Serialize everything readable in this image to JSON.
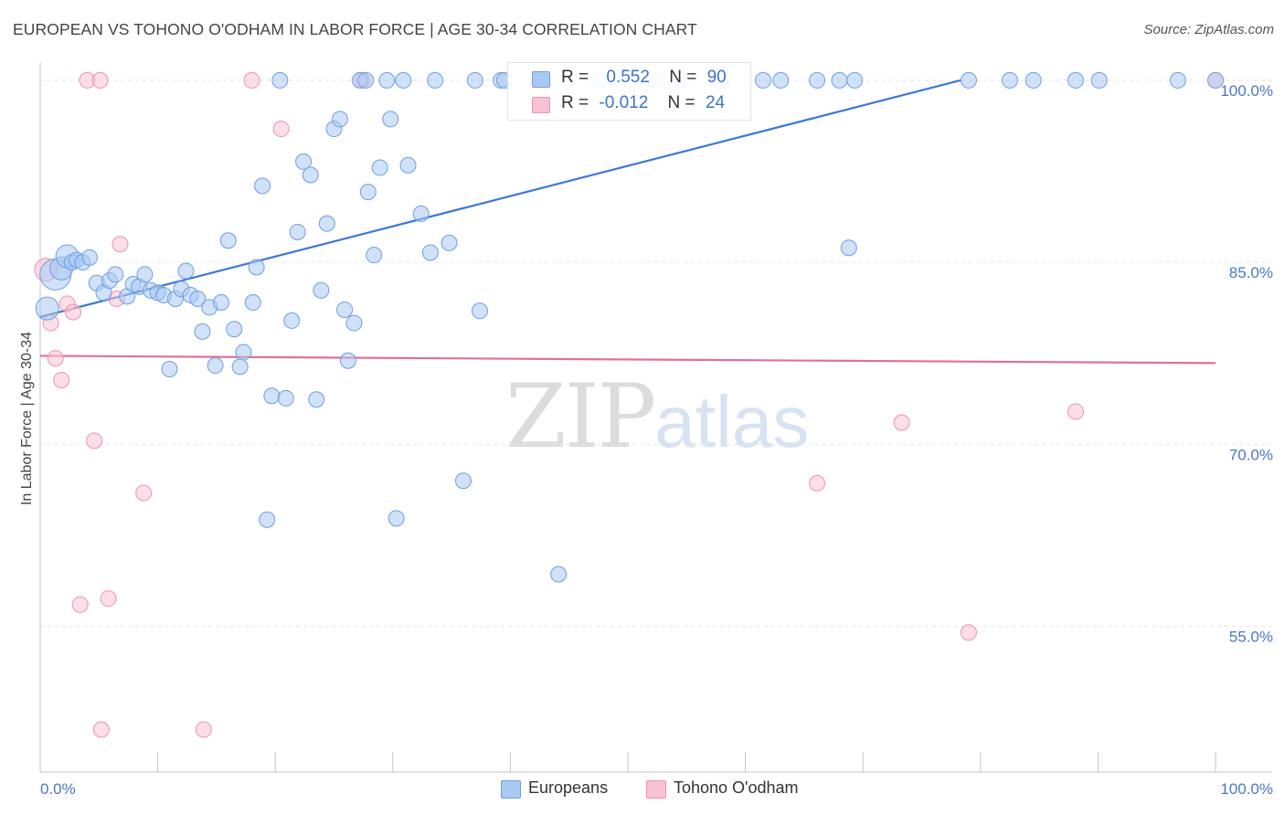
{
  "header": {
    "title": "EUROPEAN VS TOHONO O'ODHAM IN LABOR FORCE | AGE 30-34 CORRELATION CHART",
    "source": "Source: ZipAtlas.com"
  },
  "watermark": {
    "zip": "ZIP",
    "atlas": "atlas"
  },
  "legend": {
    "rows": [
      {
        "r_label": "R =",
        "r_value": "0.552",
        "n_label": "N =",
        "n_value": "90"
      },
      {
        "r_label": "R =",
        "r_value": "-0.012",
        "n_label": "N =",
        "n_value": "24"
      }
    ]
  },
  "colors": {
    "europeans_fill": "#a9c8f2",
    "europeans_stroke": "#6f9fe0",
    "europeans_line": "#3b78d6",
    "tohono_fill": "#f7c3d2",
    "tohono_stroke": "#ec94b0",
    "tohono_line": "#e2709a",
    "grid": "#e3e6ea",
    "axis_label": "#4a78c6"
  },
  "chart_data": {
    "type": "scatter",
    "title": "EUROPEAN VS TOHONO O'ODHAM IN LABOR FORCE | AGE 30-34 CORRELATION CHART",
    "xlabel": "",
    "ylabel": "In Labor Force | Age 30-34",
    "xlim": [
      0,
      100
    ],
    "ylim": [
      43,
      101.5
    ],
    "x_tick_labels": [
      "0.0%",
      "100.0%"
    ],
    "y_ticks": [
      55,
      70,
      85,
      100
    ],
    "y_tick_labels": [
      "55.0%",
      "70.0%",
      "85.0%",
      "100.0%"
    ],
    "grid": true,
    "legend_position": "top-center",
    "series": [
      {
        "name": "Europeans",
        "r": 0.552,
        "n": 90,
        "trend": {
          "x": [
            0,
            78.3
          ],
          "y": [
            80.5,
            100
          ]
        },
        "points": [
          [
            0.6,
            81.2,
            2
          ],
          [
            1.3,
            84.0,
            3
          ],
          [
            1.8,
            84.5,
            2
          ],
          [
            2.3,
            85.5,
            2
          ],
          [
            2.7,
            85.0,
            1
          ],
          [
            3.1,
            85.2,
            1
          ],
          [
            3.6,
            85.0,
            1
          ],
          [
            4.2,
            85.4,
            1
          ],
          [
            4.8,
            83.3,
            1
          ],
          [
            5.4,
            82.5,
            1
          ],
          [
            5.9,
            83.5,
            1
          ],
          [
            6.4,
            84.0,
            1
          ],
          [
            7.4,
            82.2,
            1
          ],
          [
            7.9,
            83.2,
            1
          ],
          [
            8.4,
            83.0,
            1
          ],
          [
            8.9,
            84.0,
            1
          ],
          [
            9.4,
            82.7,
            1
          ],
          [
            10.0,
            82.5,
            1
          ],
          [
            10.5,
            82.3,
            1
          ],
          [
            11.0,
            76.2,
            1
          ],
          [
            11.5,
            82.0,
            1
          ],
          [
            12.0,
            82.8,
            1
          ],
          [
            12.4,
            84.3,
            1
          ],
          [
            12.8,
            82.3,
            1
          ],
          [
            13.4,
            82.0,
            1
          ],
          [
            13.8,
            79.3,
            1
          ],
          [
            14.4,
            81.3,
            1
          ],
          [
            14.9,
            76.5,
            1
          ],
          [
            15.4,
            81.7,
            1
          ],
          [
            16.0,
            86.8,
            1
          ],
          [
            16.5,
            79.5,
            1
          ],
          [
            17.0,
            76.4,
            1
          ],
          [
            17.3,
            77.6,
            1
          ],
          [
            18.1,
            81.7,
            1
          ],
          [
            18.4,
            84.6,
            1
          ],
          [
            18.9,
            91.3,
            1
          ],
          [
            19.3,
            63.8,
            1
          ],
          [
            19.7,
            74.0,
            1
          ],
          [
            20.4,
            100.0,
            1
          ],
          [
            20.9,
            73.8,
            1
          ],
          [
            21.4,
            80.2,
            1
          ],
          [
            21.9,
            87.5,
            1
          ],
          [
            22.4,
            93.3,
            1
          ],
          [
            23.0,
            92.2,
            1
          ],
          [
            23.5,
            73.7,
            1
          ],
          [
            23.9,
            82.7,
            1
          ],
          [
            24.4,
            88.2,
            1
          ],
          [
            25.0,
            96.0,
            1
          ],
          [
            25.5,
            96.8,
            1
          ],
          [
            25.9,
            81.1,
            1
          ],
          [
            26.2,
            76.9,
            1
          ],
          [
            26.7,
            80.0,
            1
          ],
          [
            27.2,
            100.0,
            1
          ],
          [
            27.7,
            100.0,
            1
          ],
          [
            27.9,
            90.8,
            1
          ],
          [
            28.4,
            85.6,
            1
          ],
          [
            28.9,
            92.8,
            1
          ],
          [
            29.5,
            100.0,
            1
          ],
          [
            29.8,
            96.8,
            1
          ],
          [
            30.3,
            63.9,
            1
          ],
          [
            30.9,
            100.0,
            1
          ],
          [
            31.3,
            93.0,
            1
          ],
          [
            32.4,
            89.0,
            1
          ],
          [
            33.2,
            85.8,
            1
          ],
          [
            33.6,
            100.0,
            1
          ],
          [
            34.8,
            86.6,
            1
          ],
          [
            36.0,
            67.0,
            1
          ],
          [
            37.4,
            81.0,
            1
          ],
          [
            39.2,
            100.0,
            1
          ],
          [
            39.5,
            100.0,
            1
          ],
          [
            42.5,
            100.0,
            1
          ],
          [
            44.1,
            59.3,
            1
          ],
          [
            47.5,
            100.0,
            1
          ],
          [
            52.3,
            100.0,
            1
          ],
          [
            54.5,
            100.0,
            1
          ],
          [
            58.0,
            100.0,
            1
          ],
          [
            61.5,
            100.0,
            1
          ],
          [
            63.0,
            100.0,
            1
          ],
          [
            66.1,
            100.0,
            1
          ],
          [
            68.0,
            100.0,
            1
          ],
          [
            68.8,
            86.2,
            1
          ],
          [
            69.3,
            100.0,
            1
          ],
          [
            79.0,
            100.0,
            1
          ],
          [
            82.5,
            100.0,
            1
          ],
          [
            84.5,
            100.0,
            1
          ],
          [
            88.1,
            100.0,
            1
          ],
          [
            90.1,
            100.0,
            1
          ],
          [
            96.8,
            100.0,
            1
          ],
          [
            100.0,
            100.0,
            1
          ],
          [
            37.0,
            100.0,
            1
          ]
        ]
      },
      {
        "name": "Tohono O'odham",
        "r": -0.012,
        "n": 24,
        "trend": {
          "x": [
            0,
            100
          ],
          "y": [
            77.3,
            76.7
          ]
        },
        "points": [
          [
            0.5,
            84.4,
            2
          ],
          [
            0.9,
            80.0,
            1
          ],
          [
            1.3,
            77.1,
            1
          ],
          [
            1.8,
            75.3,
            1
          ],
          [
            2.3,
            81.6,
            1
          ],
          [
            2.8,
            80.9,
            1
          ],
          [
            3.4,
            56.8,
            1
          ],
          [
            4.0,
            100.0,
            1
          ],
          [
            4.6,
            70.3,
            1
          ],
          [
            5.2,
            46.5,
            1
          ],
          [
            5.1,
            100.0,
            1
          ],
          [
            5.8,
            57.3,
            1
          ],
          [
            6.5,
            82.0,
            1
          ],
          [
            6.8,
            86.5,
            1
          ],
          [
            8.8,
            66.0,
            1
          ],
          [
            13.9,
            46.5,
            1
          ],
          [
            18.0,
            100.0,
            1
          ],
          [
            20.5,
            96.0,
            1
          ],
          [
            27.4,
            100.0,
            1
          ],
          [
            66.1,
            66.8,
            1
          ],
          [
            73.3,
            71.8,
            1
          ],
          [
            79.0,
            54.5,
            1
          ],
          [
            88.1,
            72.7,
            1
          ],
          [
            100.0,
            100.0,
            1
          ]
        ]
      }
    ]
  }
}
